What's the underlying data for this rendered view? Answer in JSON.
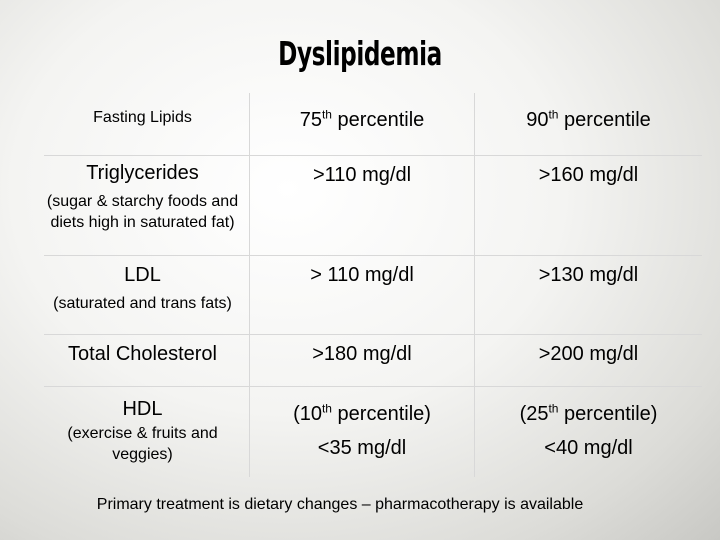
{
  "title": "Dyslipidemia",
  "table": {
    "header": {
      "col1": "Fasting Lipids",
      "col2_pre": "75",
      "col2_sup": "th",
      "col2_post": " percentile",
      "col3_pre": "90",
      "col3_sup": "th",
      "col3_post": " percentile"
    },
    "rows": {
      "triglycerides": {
        "label": "Triglycerides",
        "note": "(sugar & starchy foods and diets high in saturated fat)",
        "p75": ">110 mg/dl",
        "p90": ">160 mg/dl"
      },
      "ldl": {
        "label": "LDL",
        "note": "(saturated and trans fats)",
        "p75": "> 110 mg/dl",
        "p90": ">130 mg/dl"
      },
      "total_cholesterol": {
        "label": "Total Cholesterol",
        "p75": ">180 mg/dl",
        "p90": ">200 mg/dl"
      },
      "hdl": {
        "label": "HDL",
        "note": "(exercise & fruits and veggies)",
        "p75_line1_pre": "(10",
        "p75_line1_sup": "th",
        "p75_line1_post": " percentile)",
        "p75_line2": "<35 mg/dl",
        "p90_line1_pre": "(25",
        "p90_line1_sup": "th",
        "p90_line1_post": " percentile)",
        "p90_line2": "<40 mg/dl"
      }
    }
  },
  "footer": "Primary treatment is dietary changes – pharmacotherapy is available"
}
